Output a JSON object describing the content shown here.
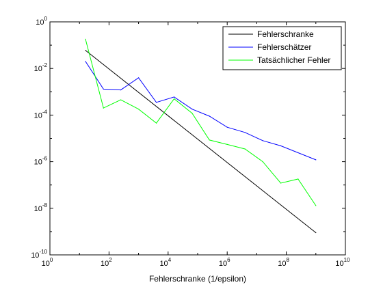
{
  "chart_data": {
    "type": "line",
    "xscale": "log",
    "yscale": "log",
    "xlim": [
      1,
      10000000000
    ],
    "ylim": [
      1e-10,
      1
    ],
    "xticks": [
      {
        "base": "10",
        "exp": "0",
        "value": 1
      },
      {
        "base": "10",
        "exp": "2",
        "value": 100
      },
      {
        "base": "10",
        "exp": "4",
        "value": 10000
      },
      {
        "base": "10",
        "exp": "6",
        "value": 1000000
      },
      {
        "base": "10",
        "exp": "8",
        "value": 100000000
      },
      {
        "base": "10",
        "exp": "10",
        "value": 10000000000
      }
    ],
    "yticks": [
      {
        "base": "10",
        "exp": "-10",
        "value": 1e-10
      },
      {
        "base": "10",
        "exp": "-8",
        "value": 1e-08
      },
      {
        "base": "10",
        "exp": "-6",
        "value": 1e-06
      },
      {
        "base": "10",
        "exp": "-4",
        "value": 0.0001
      },
      {
        "base": "10",
        "exp": "-2",
        "value": 0.01
      },
      {
        "base": "10",
        "exp": "0",
        "value": 1
      }
    ],
    "xlabel": "Fehlerschranke (1/epsilon)",
    "ylabel": "",
    "title": "",
    "grid": false,
    "legend_position": "top-right",
    "series": [
      {
        "name": "Fehlerschranke",
        "color": "#000000",
        "x": [
          16,
          1000000000
        ],
        "y": [
          0.06,
          9e-10
        ]
      },
      {
        "name": "Fehlerschätzer",
        "color": "#0000ff",
        "x": [
          16,
          65,
          250,
          1000,
          4000,
          16000,
          65000,
          250000,
          1000000,
          4000000,
          16000000,
          65000000,
          1000000000
        ],
        "y": [
          0.02,
          0.0013,
          0.0012,
          0.004,
          0.00035,
          0.0006,
          0.00018,
          9e-05,
          3e-05,
          1.8e-05,
          8e-06,
          4.8e-06,
          1.2e-06
        ]
      },
      {
        "name": "Tatsächlicher Fehler",
        "color": "#00ff00",
        "x": [
          16,
          65,
          250,
          1000,
          4000,
          16000,
          65000,
          250000,
          1000000,
          4000000,
          16000000,
          65000000,
          250000000,
          1000000000
        ],
        "y": [
          0.18,
          0.0002,
          0.00045,
          0.00018,
          4.5e-05,
          0.0005,
          0.00012,
          8.5e-06,
          5.5e-06,
          3.5e-06,
          1e-06,
          1.2e-07,
          1.8e-07,
          1.3e-08
        ]
      }
    ]
  }
}
